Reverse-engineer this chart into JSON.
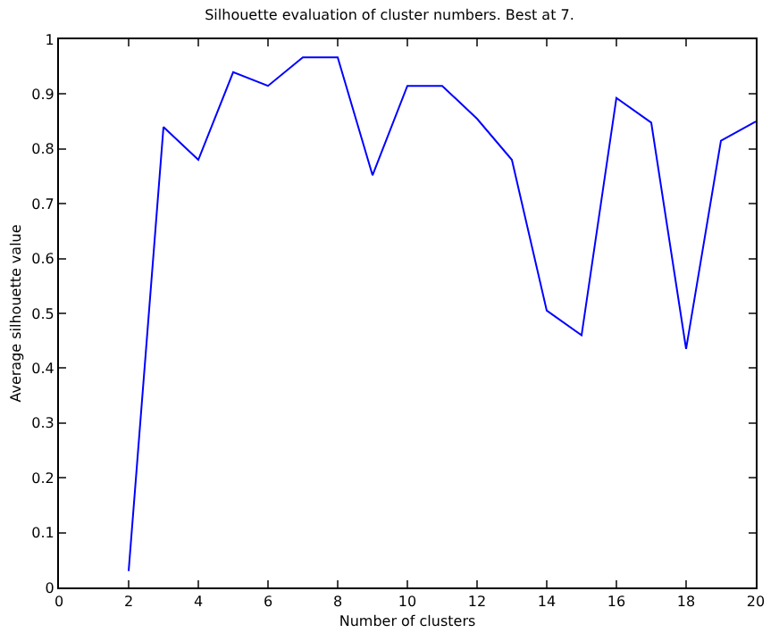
{
  "chart_data": {
    "type": "line",
    "title": "Silhouette evaluation of cluster numbers. Best at 7.",
    "xlabel": "Number of clusters",
    "ylabel": "Average silhouette value",
    "x": [
      2,
      3,
      4,
      5,
      6,
      7,
      8,
      9,
      10,
      11,
      12,
      13,
      14,
      15,
      16,
      17,
      18,
      19,
      20
    ],
    "series": [
      {
        "color": "#0000ff",
        "values": [
          0.03,
          0.84,
          0.78,
          0.94,
          0.915,
          0.967,
          0.967,
          0.752,
          0.915,
          0.915,
          0.855,
          0.78,
          0.505,
          0.46,
          0.893,
          0.848,
          0.435,
          0.815,
          0.85
        ]
      }
    ],
    "xlim": [
      0,
      20
    ],
    "xticks": [
      0,
      2,
      4,
      6,
      8,
      10,
      12,
      14,
      16,
      18,
      20
    ],
    "ylim": [
      0,
      1
    ],
    "yticks": [
      0,
      0.1,
      0.2,
      0.3,
      0.4,
      0.5,
      0.6,
      0.7,
      0.8,
      0.9,
      1
    ],
    "grid": false,
    "marker": "none",
    "line_style": "solid"
  }
}
